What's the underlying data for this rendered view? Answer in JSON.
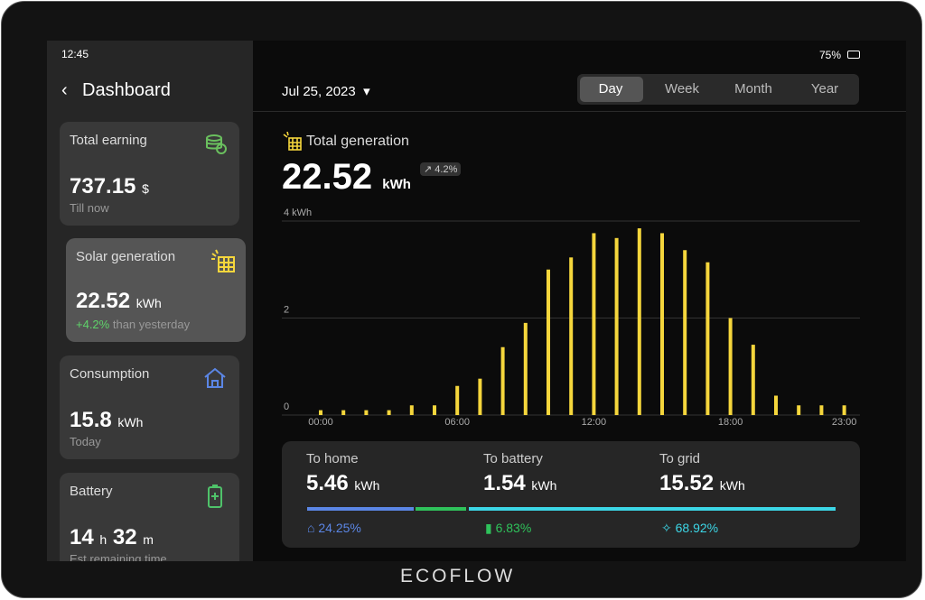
{
  "status_bar": {
    "time": "12:45",
    "battery": "75%"
  },
  "sidebar": {
    "title": "Dashboard",
    "cards": [
      {
        "title": "Total earning",
        "value": "737.15",
        "unit": "$",
        "note": "Till now"
      },
      {
        "title": "Solar generation",
        "value": "22.52",
        "unit": "kWh",
        "change": "+4.2%",
        "note": "than yesterday"
      },
      {
        "title": "Consumption",
        "value": "15.8",
        "unit": "kWh",
        "note": "Today"
      },
      {
        "title": "Battery",
        "hours": "14",
        "hours_unit": "h",
        "minutes": "32",
        "minutes_unit": "m",
        "note": "Est remaining time"
      }
    ]
  },
  "header": {
    "date": "Jul 25, 2023",
    "tabs": [
      "Day",
      "Week",
      "Month",
      "Year"
    ]
  },
  "summary": {
    "title": "Total generation",
    "value": "22.52",
    "unit": "kWh",
    "change": "4.2%"
  },
  "chart_data": {
    "type": "bar",
    "color": "#f5d63c",
    "categories": [
      "00:00",
      null,
      null,
      null,
      null,
      null,
      "06:00",
      null,
      null,
      null,
      null,
      null,
      "12:00",
      null,
      null,
      null,
      null,
      null,
      "18:00",
      null,
      null,
      null,
      null,
      "23:00"
    ],
    "values": [
      0.1,
      0.1,
      0.1,
      0.1,
      0.2,
      0.2,
      0.6,
      0.75,
      1.4,
      1.9,
      3.0,
      3.25,
      3.75,
      3.65,
      3.85,
      3.75,
      3.4,
      3.15,
      2.0,
      1.45,
      0.4,
      0.2,
      0.2,
      0.2
    ],
    "ylim": [
      0,
      4
    ],
    "yticks": [
      0,
      2,
      {
        "value": 4,
        "label": "4 kWh"
      }
    ],
    "grid": true
  },
  "breakdown": [
    {
      "label": "To home",
      "value": "5.46",
      "unit": "kWh",
      "share": "24.25%"
    },
    {
      "label": "To battery",
      "value": "1.54",
      "unit": "kWh",
      "share": "6.83%"
    },
    {
      "label": "To grid",
      "value": "15.52",
      "unit": "kWh",
      "share": "68.92%"
    }
  ],
  "brand": "ECOFLOW"
}
